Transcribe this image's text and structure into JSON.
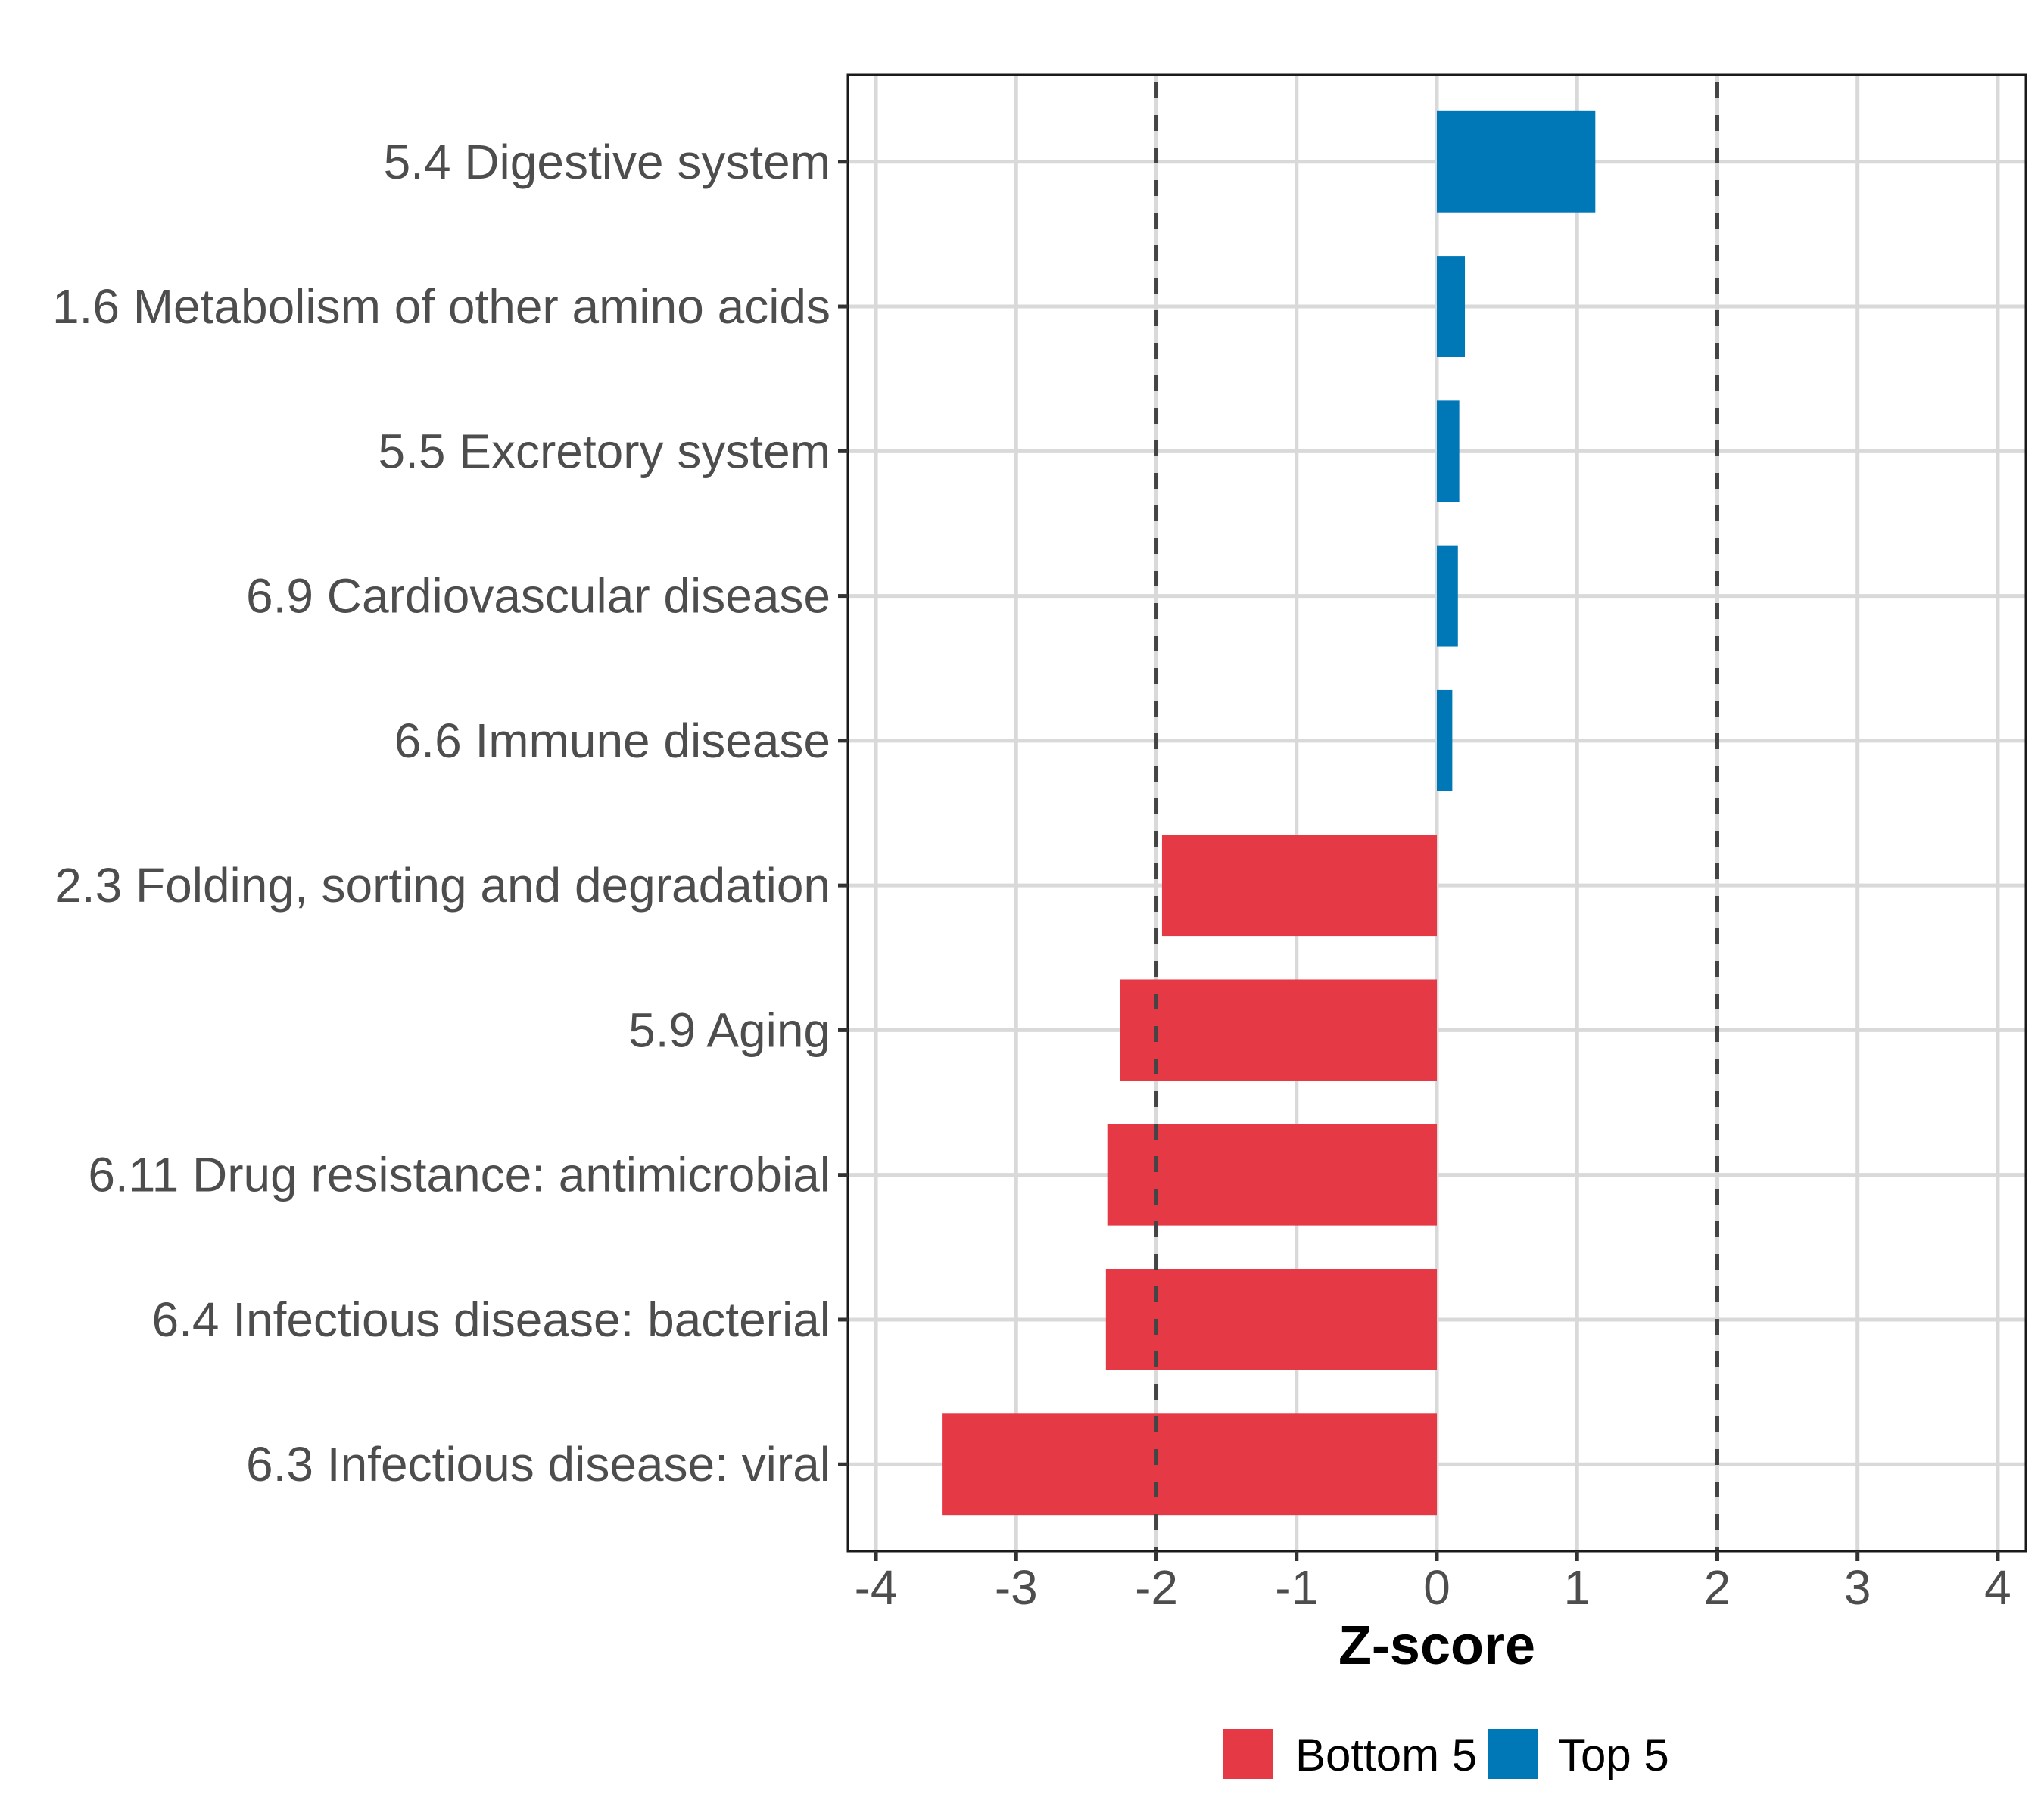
{
  "chart_data": {
    "type": "bar",
    "orientation": "horizontal",
    "title": "",
    "xlabel": "Z-score",
    "ylabel": "",
    "xlim": [
      -4.2,
      4.2
    ],
    "xticks": [
      -4,
      -3,
      -2,
      -1,
      0,
      1,
      2,
      3,
      4
    ],
    "xtick_labels": [
      "-4",
      "-3",
      "-2",
      "-1",
      "0",
      "1",
      "2",
      "3",
      "4"
    ],
    "grid": true,
    "reference_lines": [
      -2,
      2
    ],
    "categories": [
      "5.4 Digestive system",
      "1.6 Metabolism of other amino acids",
      "5.5 Excretory system",
      "6.9 Cardiovascular disease",
      "6.6 Immune disease",
      "2.3 Folding, sorting and degradation",
      "5.9 Aging",
      "6.11 Drug resistance: antimicrobial",
      "6.4 Infectious disease: bacterial",
      "6.3 Infectious disease: viral"
    ],
    "values": [
      1.13,
      0.2,
      0.16,
      0.15,
      0.11,
      -1.96,
      -2.26,
      -2.35,
      -2.36,
      -3.53
    ],
    "groups": [
      "Top 5",
      "Top 5",
      "Top 5",
      "Top 5",
      "Top 5",
      "Bottom 5",
      "Bottom 5",
      "Bottom 5",
      "Bottom 5",
      "Bottom 5"
    ],
    "legend": {
      "position": "bottom",
      "entries": [
        {
          "label": "Bottom 5",
          "color": "#E63946"
        },
        {
          "label": "Top 5",
          "color": "#0077B6"
        }
      ]
    },
    "colors": {
      "Top 5": "#0077B6",
      "Bottom 5": "#E63946",
      "grid": "#d9d9d9",
      "reference_line": "#444444",
      "panel_border": "#1a1a1a",
      "tick_text": "#4d4d4d"
    }
  }
}
